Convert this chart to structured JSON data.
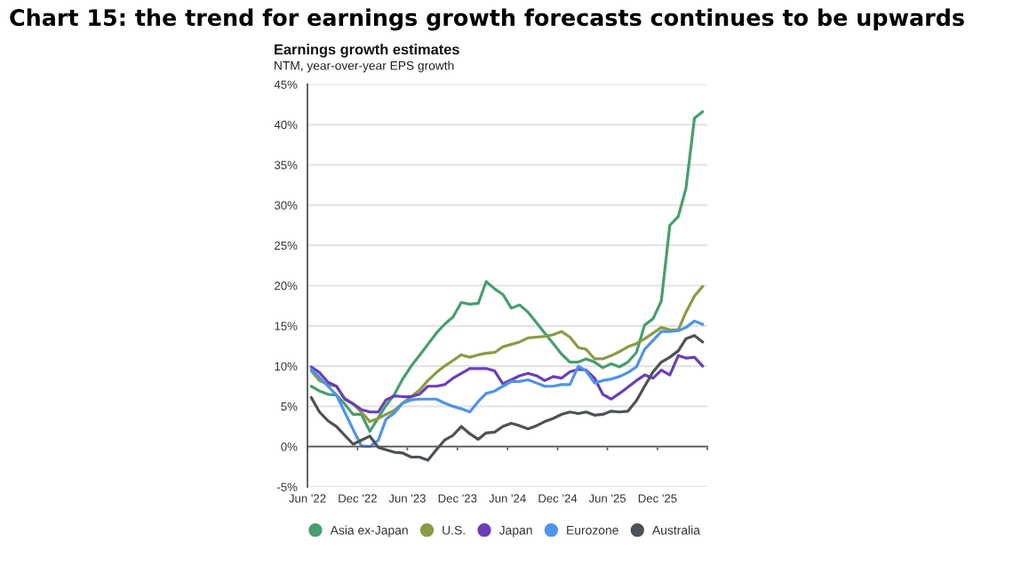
{
  "chart_data": {
    "type": "line",
    "title": "Chart 15: the trend for earnings growth forecasts continues to be upwards",
    "subtitle": "Earnings growth estimates",
    "ylabel": "NTM, year-over-year EPS growth",
    "x": [
      "2022-06-15",
      "2022-07-15",
      "2022-08-15",
      "2022-09-15",
      "2022-10-15",
      "2022-11-15",
      "2022-12-15",
      "2023-01-15",
      "2023-02-15",
      "2023-03-15",
      "2023-04-15",
      "2023-05-15",
      "2023-06-15",
      "2023-07-15",
      "2023-08-15",
      "2023-09-15",
      "2023-10-15",
      "2023-11-15",
      "2023-12-15",
      "2024-01-15",
      "2024-02-15",
      "2024-03-15",
      "2024-04-15",
      "2024-05-15",
      "2024-06-15",
      "2024-07-15",
      "2024-08-15",
      "2024-09-15",
      "2024-10-15",
      "2024-11-15",
      "2024-12-15",
      "2025-01-15",
      "2025-02-15",
      "2025-03-15",
      "2025-04-15",
      "2025-05-15",
      "2025-06-15",
      "2025-07-15",
      "2025-08-15",
      "2025-09-15",
      "2025-10-15",
      "2025-11-15",
      "2025-12-15",
      "2026-01-15",
      "2026-02-15",
      "2026-03-15",
      "2026-04-15",
      "2026-05-15"
    ],
    "series": [
      {
        "name": "Asia ex-Japan",
        "color": "#479e6f",
        "values": [
          7.5,
          6.9,
          6.5,
          6.4,
          5.3,
          4.0,
          4.0,
          1.9,
          3.6,
          5.1,
          6.5,
          8.4,
          10.0,
          11.3,
          12.7,
          14.1,
          15.2,
          16.1,
          17.9,
          17.7,
          17.8,
          20.5,
          19.6,
          18.9,
          17.2,
          17.6,
          16.7,
          15.4,
          14.1,
          12.8,
          11.5,
          10.5,
          10.5,
          10.9,
          10.5,
          9.8,
          10.3,
          9.9,
          10.5,
          11.7,
          15.1,
          15.9,
          18.1,
          27.5,
          28.6,
          32.1,
          40.8,
          41.6
        ]
      },
      {
        "name": "U.S.",
        "color": "#8a9b45",
        "values": [
          9.4,
          8.2,
          7.7,
          7.5,
          6.0,
          5.3,
          4.3,
          3.1,
          3.5,
          4.0,
          4.5,
          5.4,
          6.2,
          7.0,
          8.2,
          9.2,
          10.0,
          10.7,
          11.4,
          11.1,
          11.4,
          11.6,
          11.7,
          12.4,
          12.7,
          13.0,
          13.5,
          13.6,
          13.7,
          13.9,
          14.3,
          13.6,
          12.3,
          12.1,
          10.9,
          10.9,
          11.3,
          11.8,
          12.4,
          12.8,
          13.4,
          14.1,
          14.8,
          14.5,
          14.5,
          16.7,
          18.7,
          19.9
        ]
      },
      {
        "name": "Japan",
        "color": "#6a3fb8",
        "values": [
          9.9,
          9.2,
          8.0,
          7.5,
          5.9,
          5.3,
          4.6,
          4.3,
          4.3,
          5.8,
          6.3,
          6.2,
          6.2,
          6.5,
          7.5,
          7.5,
          7.7,
          8.5,
          9.1,
          9.7,
          9.7,
          9.7,
          9.4,
          7.8,
          8.3,
          8.8,
          9.1,
          8.8,
          8.2,
          8.7,
          8.5,
          9.3,
          9.6,
          9.5,
          8.5,
          6.5,
          5.9,
          6.6,
          7.4,
          8.2,
          8.9,
          8.5,
          9.5,
          8.9,
          11.3,
          11.0,
          11.1,
          10.0
        ]
      },
      {
        "name": "Eurozone",
        "color": "#4f93ea",
        "values": [
          9.6,
          8.6,
          7.5,
          6.4,
          4.3,
          2.1,
          0.1,
          0.0,
          0.8,
          3.4,
          4.2,
          5.4,
          5.8,
          5.9,
          5.9,
          5.9,
          5.4,
          5.0,
          4.7,
          4.3,
          5.6,
          6.6,
          6.9,
          7.5,
          8.1,
          8.1,
          8.3,
          7.9,
          7.5,
          7.5,
          7.7,
          7.7,
          10.0,
          9.4,
          7.9,
          8.2,
          8.4,
          8.7,
          9.2,
          9.9,
          12.1,
          13.2,
          14.3,
          14.3,
          14.4,
          14.8,
          15.6,
          15.2
        ]
      },
      {
        "name": "Australia",
        "color": "#4d5256",
        "values": [
          6.1,
          4.3,
          3.2,
          2.5,
          1.4,
          0.3,
          0.8,
          1.3,
          -0.1,
          -0.4,
          -0.7,
          -0.8,
          -1.3,
          -1.3,
          -1.7,
          -0.4,
          0.8,
          1.4,
          2.5,
          1.6,
          0.9,
          1.7,
          1.8,
          2.5,
          2.9,
          2.6,
          2.2,
          2.6,
          3.1,
          3.5,
          4.0,
          4.3,
          4.1,
          4.3,
          3.9,
          4.0,
          4.4,
          4.3,
          4.4,
          5.7,
          7.5,
          9.3,
          10.5,
          11.1,
          11.9,
          13.4,
          13.8,
          13.0
        ]
      }
    ],
    "xlim": [
      "2022-06",
      "2026-06"
    ],
    "xticks": [
      {
        "value": "2022-06",
        "label": "Jun '22"
      },
      {
        "value": "2022-12",
        "label": "Dec '22"
      },
      {
        "value": "2023-06",
        "label": "Jun '23"
      },
      {
        "value": "2023-12",
        "label": "Dec '23"
      },
      {
        "value": "2024-06",
        "label": "Jun '24"
      },
      {
        "value": "2024-12",
        "label": "Dec '24"
      },
      {
        "value": "2025-06",
        "label": "Jun '25"
      },
      {
        "value": "2025-12",
        "label": "Dec '25"
      },
      {
        "value": "2026-06",
        "label": null
      }
    ],
    "ylim": [
      -5,
      45
    ],
    "yticks": [
      {
        "value": -5,
        "label": "-5%"
      },
      {
        "value": 0,
        "label": "0%"
      },
      {
        "value": 5,
        "label": "5%"
      },
      {
        "value": 10,
        "label": "10%"
      },
      {
        "value": 15,
        "label": "15%"
      },
      {
        "value": 20,
        "label": "20%"
      },
      {
        "value": 25,
        "label": "25%"
      },
      {
        "value": 30,
        "label": "30%"
      },
      {
        "value": 35,
        "label": "35%"
      },
      {
        "value": 40,
        "label": "40%"
      },
      {
        "value": 45,
        "label": "45%"
      }
    ],
    "grid": "y",
    "legend": "bottom",
    "line_style": "solid"
  }
}
